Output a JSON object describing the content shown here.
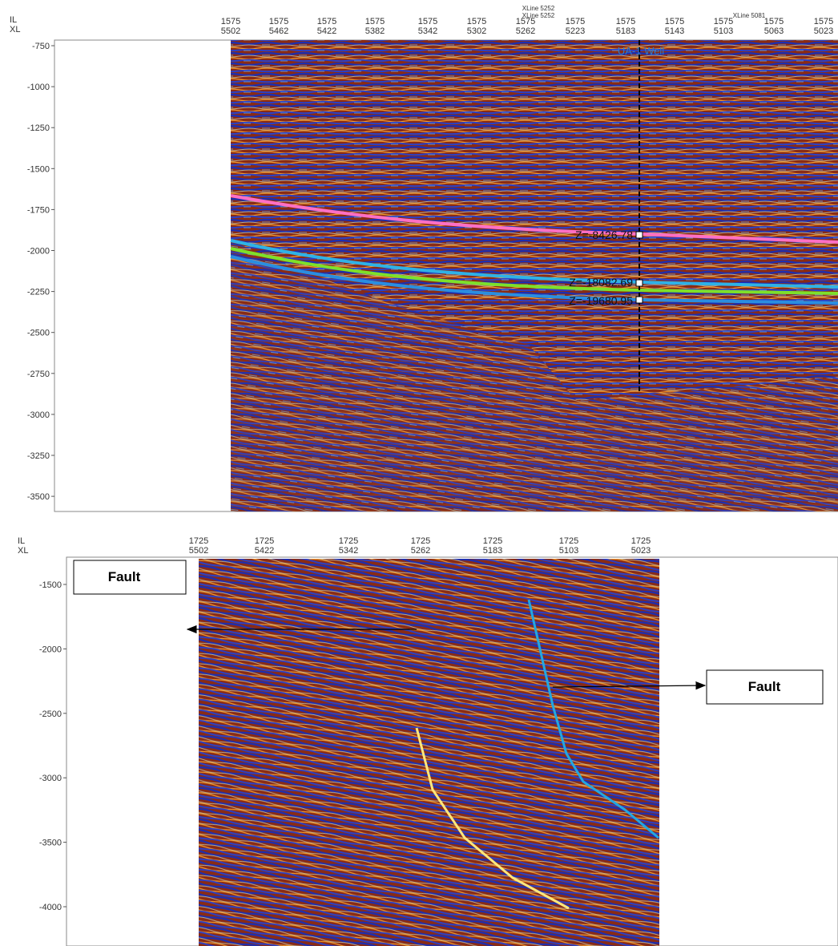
{
  "panels": [
    {
      "axis_labels": [
        "IL",
        "XL"
      ],
      "columns": [
        [
          "1575",
          "5502"
        ],
        [
          "1575",
          "5462"
        ],
        [
          "1575",
          "5422"
        ],
        [
          "1575",
          "5382"
        ],
        [
          "1575",
          "5342"
        ],
        [
          "1575",
          "5302"
        ],
        [
          "1575",
          "5262"
        ],
        [
          "1575",
          "5223"
        ],
        [
          "1575",
          "5183"
        ],
        [
          "1575",
          "5143"
        ],
        [
          "1575",
          "5103"
        ],
        [
          "1575",
          "5063"
        ],
        [
          "1575",
          "5023"
        ]
      ],
      "y_ticks": [
        -750,
        -1000,
        -1250,
        -1500,
        -1750,
        -2000,
        -2250,
        -2500,
        -2750,
        -3000,
        -3250,
        -3500
      ],
      "annotations": [
        "XLine 5252",
        "XLine 5252",
        "XLine 5081",
        "UA-1 Well",
        "Z=-8426.78",
        "Z=-18082.69",
        "Z=-19680.95"
      ]
    },
    {
      "axis_labels": [
        "IL",
        "XL"
      ],
      "columns": [
        [
          "1725",
          "5502"
        ],
        [
          "1725",
          "5422"
        ],
        [
          "1725",
          "5342"
        ],
        [
          "1725",
          "5262"
        ],
        [
          "1725",
          "5183"
        ],
        [
          "1725",
          "5103"
        ],
        [
          "1725",
          "5023"
        ]
      ],
      "y_ticks": [
        -1500,
        -2000,
        -2500,
        -3000,
        -3500,
        -4000
      ],
      "callouts": [
        "Fault",
        "Fault"
      ]
    }
  ]
}
